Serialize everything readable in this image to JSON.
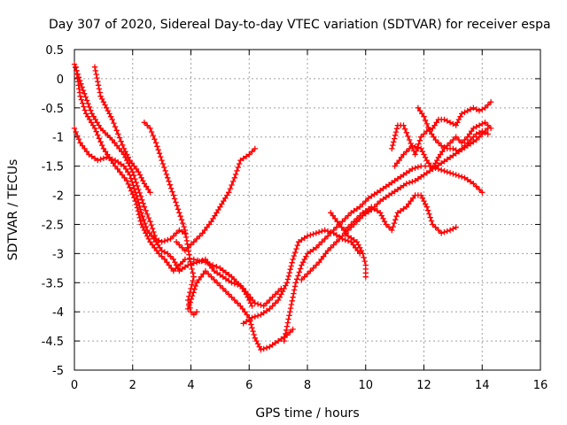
{
  "chart_data": {
    "type": "scatter",
    "title": "Day 307 of 2020, Sidereal Day-to-day VTEC variation (SDTVAR) for receiver espa",
    "xlabel": "GPS time / hours",
    "ylabel": "SDTVAR / TECUs",
    "xlim": [
      0,
      16
    ],
    "ylim": [
      -5,
      0.5
    ],
    "xticks": [
      "0",
      "2",
      "4",
      "6",
      "8",
      "10",
      "12",
      "14",
      "16"
    ],
    "yticks": [
      "0.5",
      "0",
      "-0.5",
      "-1",
      "-1.5",
      "-2",
      "-2.5",
      "-3",
      "-3.5",
      "-4",
      "-4.5",
      "-5"
    ],
    "grid": true,
    "marker": "+",
    "color": "#ff0000",
    "series": [
      {
        "points": [
          [
            0.0,
            0.25
          ],
          [
            0.3,
            -0.2
          ],
          [
            0.6,
            -0.6
          ],
          [
            0.9,
            -0.85
          ],
          [
            1.3,
            -1.05
          ],
          [
            1.7,
            -1.3
          ],
          [
            2.0,
            -1.6
          ],
          [
            2.2,
            -1.9
          ],
          [
            2.4,
            -2.2
          ],
          [
            2.6,
            -2.45
          ],
          [
            2.8,
            -2.75
          ],
          [
            3.0,
            -2.8
          ],
          [
            3.3,
            -2.75
          ],
          [
            3.6,
            -2.6
          ],
          [
            3.8,
            -2.65
          ]
        ]
      },
      {
        "points": [
          [
            0.05,
            0.2
          ],
          [
            0.2,
            -0.3
          ],
          [
            0.4,
            -0.6
          ],
          [
            0.7,
            -0.85
          ],
          [
            1.0,
            -1.2
          ],
          [
            1.4,
            -1.5
          ],
          [
            1.8,
            -1.75
          ],
          [
            2.1,
            -2.1
          ],
          [
            2.3,
            -2.5
          ],
          [
            2.6,
            -2.8
          ],
          [
            2.9,
            -3.0
          ],
          [
            3.1,
            -3.1
          ],
          [
            3.4,
            -3.3
          ],
          [
            3.8,
            -3.1
          ],
          [
            4.1,
            -3.1
          ],
          [
            4.5,
            -3.15
          ],
          [
            5.0,
            -3.25
          ],
          [
            5.4,
            -3.4
          ],
          [
            5.8,
            -3.6
          ],
          [
            6.2,
            -3.85
          ],
          [
            6.5,
            -3.9
          ],
          [
            6.8,
            -3.75
          ],
          [
            7.1,
            -3.6
          ]
        ]
      },
      {
        "points": [
          [
            0.0,
            -0.85
          ],
          [
            0.2,
            -1.1
          ],
          [
            0.5,
            -1.3
          ],
          [
            0.8,
            -1.4
          ],
          [
            1.1,
            -1.35
          ],
          [
            1.4,
            -1.4
          ],
          [
            1.7,
            -1.5
          ],
          [
            1.9,
            -1.65
          ],
          [
            2.1,
            -1.95
          ],
          [
            2.3,
            -2.3
          ],
          [
            2.5,
            -2.6
          ],
          [
            2.8,
            -2.8
          ],
          [
            3.0,
            -2.95
          ],
          [
            3.2,
            -3.0
          ],
          [
            3.4,
            -3.1
          ],
          [
            3.6,
            -3.3
          ],
          [
            3.9,
            -3.2
          ],
          [
            4.2,
            -3.15
          ],
          [
            4.5,
            -3.1
          ],
          [
            4.8,
            -3.3
          ],
          [
            5.1,
            -3.4
          ],
          [
            5.4,
            -3.5
          ],
          [
            5.7,
            -3.55
          ],
          [
            5.9,
            -3.7
          ],
          [
            6.1,
            -3.9
          ]
        ]
      },
      {
        "points": [
          [
            0.7,
            0.2
          ],
          [
            0.9,
            -0.3
          ],
          [
            1.1,
            -0.5
          ],
          [
            1.3,
            -0.7
          ],
          [
            1.5,
            -0.95
          ],
          [
            1.7,
            -1.2
          ],
          [
            1.9,
            -1.4
          ],
          [
            2.2,
            -1.6
          ],
          [
            2.4,
            -1.8
          ],
          [
            2.6,
            -1.95
          ]
        ]
      },
      {
        "points": [
          [
            2.4,
            -0.75
          ],
          [
            2.6,
            -0.85
          ],
          [
            2.8,
            -1.1
          ],
          [
            3.0,
            -1.4
          ],
          [
            3.2,
            -1.7
          ],
          [
            3.4,
            -2.0
          ],
          [
            3.6,
            -2.3
          ],
          [
            3.8,
            -2.6
          ],
          [
            3.9,
            -2.9
          ],
          [
            4.0,
            -3.2
          ],
          [
            4.1,
            -3.4
          ],
          [
            4.0,
            -3.6
          ],
          [
            3.9,
            -3.8
          ],
          [
            4.0,
            -4.0
          ],
          [
            4.1,
            -4.05
          ],
          [
            4.2,
            -4.0
          ]
        ]
      },
      {
        "points": [
          [
            3.5,
            -2.8
          ],
          [
            3.8,
            -2.95
          ],
          [
            4.1,
            -2.8
          ],
          [
            4.4,
            -2.65
          ],
          [
            4.7,
            -2.45
          ],
          [
            5.0,
            -2.2
          ],
          [
            5.3,
            -1.95
          ],
          [
            5.5,
            -1.7
          ],
          [
            5.7,
            -1.4
          ],
          [
            6.0,
            -1.3
          ],
          [
            6.2,
            -1.2
          ]
        ]
      },
      {
        "points": [
          [
            3.9,
            -3.95
          ],
          [
            4.2,
            -3.5
          ],
          [
            4.5,
            -3.3
          ],
          [
            4.8,
            -3.45
          ],
          [
            5.1,
            -3.6
          ],
          [
            5.4,
            -3.75
          ],
          [
            5.7,
            -3.9
          ],
          [
            6.0,
            -4.1
          ],
          [
            6.2,
            -4.45
          ],
          [
            6.4,
            -4.65
          ],
          [
            6.7,
            -4.6
          ],
          [
            7.0,
            -4.5
          ],
          [
            7.3,
            -4.4
          ],
          [
            7.5,
            -4.3
          ]
        ]
      },
      {
        "points": [
          [
            5.8,
            -4.2
          ],
          [
            6.1,
            -4.1
          ],
          [
            6.4,
            -4.05
          ],
          [
            6.7,
            -3.95
          ],
          [
            7.0,
            -3.8
          ],
          [
            7.3,
            -3.5
          ],
          [
            7.5,
            -3.1
          ],
          [
            7.7,
            -2.8
          ],
          [
            8.0,
            -2.7
          ],
          [
            8.3,
            -2.65
          ],
          [
            8.6,
            -2.6
          ],
          [
            8.9,
            -2.65
          ],
          [
            9.2,
            -2.75
          ],
          [
            9.5,
            -2.8
          ],
          [
            9.8,
            -3.0
          ]
        ]
      },
      {
        "points": [
          [
            7.2,
            -4.5
          ],
          [
            7.4,
            -4.0
          ],
          [
            7.6,
            -3.5
          ],
          [
            7.8,
            -3.2
          ],
          [
            8.0,
            -3.0
          ],
          [
            8.3,
            -2.9
          ],
          [
            8.6,
            -2.75
          ],
          [
            8.9,
            -2.6
          ],
          [
            9.2,
            -2.45
          ],
          [
            9.5,
            -2.3
          ],
          [
            9.8,
            -2.2
          ],
          [
            10.1,
            -2.05
          ],
          [
            10.4,
            -1.95
          ],
          [
            10.7,
            -1.85
          ],
          [
            11.0,
            -1.75
          ],
          [
            11.3,
            -1.65
          ],
          [
            11.6,
            -1.55
          ],
          [
            11.9,
            -1.5
          ],
          [
            12.2,
            -1.5
          ],
          [
            12.5,
            -1.55
          ],
          [
            12.8,
            -1.6
          ],
          [
            13.1,
            -1.65
          ],
          [
            13.4,
            -1.7
          ],
          [
            13.7,
            -1.8
          ],
          [
            14.0,
            -1.95
          ]
        ]
      },
      {
        "points": [
          [
            7.8,
            -3.45
          ],
          [
            8.1,
            -3.3
          ],
          [
            8.4,
            -3.15
          ],
          [
            8.7,
            -2.95
          ],
          [
            9.0,
            -2.8
          ],
          [
            9.3,
            -2.65
          ],
          [
            9.6,
            -2.5
          ],
          [
            9.9,
            -2.35
          ],
          [
            10.2,
            -2.25
          ],
          [
            10.5,
            -2.1
          ],
          [
            10.8,
            -2.0
          ],
          [
            11.1,
            -1.9
          ],
          [
            11.4,
            -1.8
          ],
          [
            11.7,
            -1.75
          ],
          [
            12.0,
            -1.65
          ],
          [
            12.3,
            -1.55
          ],
          [
            12.6,
            -1.45
          ],
          [
            12.9,
            -1.35
          ],
          [
            13.2,
            -1.25
          ],
          [
            13.5,
            -1.15
          ],
          [
            13.8,
            -1.05
          ],
          [
            14.0,
            -0.95
          ],
          [
            14.2,
            -0.85
          ]
        ]
      },
      {
        "points": [
          [
            8.8,
            -2.3
          ],
          [
            9.1,
            -2.5
          ],
          [
            9.4,
            -2.7
          ],
          [
            9.7,
            -2.8
          ],
          [
            9.9,
            -3.0
          ],
          [
            10.0,
            -3.2
          ],
          [
            10.0,
            -3.4
          ]
        ]
      },
      {
        "points": [
          [
            9.3,
            -2.6
          ],
          [
            9.6,
            -2.45
          ],
          [
            9.9,
            -2.3
          ],
          [
            10.2,
            -2.2
          ],
          [
            10.5,
            -2.3
          ],
          [
            10.7,
            -2.5
          ],
          [
            10.9,
            -2.6
          ],
          [
            11.1,
            -2.3
          ],
          [
            11.4,
            -2.2
          ],
          [
            11.7,
            -2.0
          ],
          [
            11.9,
            -2.0
          ],
          [
            12.1,
            -2.2
          ],
          [
            12.3,
            -2.5
          ],
          [
            12.6,
            -2.65
          ],
          [
            12.9,
            -2.6
          ],
          [
            13.1,
            -2.55
          ]
        ]
      },
      {
        "points": [
          [
            10.9,
            -1.2
          ],
          [
            11.1,
            -0.8
          ],
          [
            11.3,
            -0.8
          ],
          [
            11.5,
            -1.05
          ],
          [
            11.7,
            -1.3
          ],
          [
            11.9,
            -1.0
          ],
          [
            12.1,
            -0.9
          ],
          [
            12.3,
            -0.85
          ],
          [
            12.5,
            -0.7
          ],
          [
            12.7,
            -0.7
          ],
          [
            12.9,
            -0.75
          ],
          [
            13.1,
            -0.8
          ],
          [
            13.3,
            -0.6
          ],
          [
            13.5,
            -0.55
          ],
          [
            13.7,
            -0.5
          ],
          [
            13.9,
            -0.55
          ],
          [
            14.1,
            -0.5
          ],
          [
            14.3,
            -0.4
          ]
        ]
      },
      {
        "points": [
          [
            11.0,
            -1.5
          ],
          [
            11.3,
            -1.3
          ],
          [
            11.6,
            -1.15
          ],
          [
            11.9,
            -1.2
          ],
          [
            12.1,
            -1.4
          ],
          [
            12.3,
            -1.55
          ],
          [
            12.5,
            -1.35
          ],
          [
            12.7,
            -1.2
          ],
          [
            12.9,
            -1.1
          ],
          [
            13.1,
            -1.0
          ],
          [
            13.3,
            -1.1
          ],
          [
            13.5,
            -1.0
          ],
          [
            13.7,
            -0.85
          ],
          [
            13.9,
            -0.8
          ],
          [
            14.1,
            -0.75
          ],
          [
            14.3,
            -0.85
          ]
        ]
      },
      {
        "points": [
          [
            11.8,
            -0.5
          ],
          [
            12.0,
            -0.65
          ],
          [
            12.2,
            -0.9
          ],
          [
            12.4,
            -1.05
          ],
          [
            12.6,
            -1.15
          ],
          [
            12.8,
            -1.2
          ],
          [
            13.0,
            -1.2
          ],
          [
            13.2,
            -1.25
          ],
          [
            13.4,
            -1.15
          ],
          [
            13.6,
            -1.05
          ],
          [
            13.8,
            -0.95
          ],
          [
            14.0,
            -0.9
          ],
          [
            14.2,
            -0.95
          ]
        ]
      }
    ]
  }
}
